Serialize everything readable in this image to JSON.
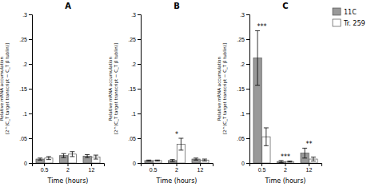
{
  "chart_data": [
    {
      "type": "bar",
      "title": "A",
      "x_label": "Time (hours)",
      "y_label": "Relative mRNA accumulation\n[2^(C_T target transcript − C_T β tublin)]",
      "categories": [
        "0.5",
        "2",
        "12"
      ],
      "series": [
        {
          "name": "11C",
          "color": "#999999",
          "values": [
            0.008,
            0.015,
            0.014
          ],
          "errors": [
            0.002,
            0.004,
            0.003
          ]
        },
        {
          "name": "Tr. 259",
          "color": "#ffffff",
          "values": [
            0.01,
            0.018,
            0.012
          ],
          "errors": [
            0.003,
            0.005,
            0.004
          ]
        }
      ],
      "ylim": [
        0,
        0.3
      ],
      "yticks": [
        0,
        {
          "value": 0.05,
          "label": ".05"
        },
        {
          "value": 0.1,
          "label": ".1"
        },
        {
          "value": 0.15,
          "label": ".15"
        },
        {
          "value": 0.2,
          "label": ".2"
        },
        {
          "value": 0.25,
          "label": ".25"
        },
        {
          "value": 0.3,
          "label": ".3"
        }
      ],
      "legend": "upper right"
    },
    {
      "type": "bar",
      "title": "B",
      "x_label": "Time (hours)",
      "y_label": "Relative mRNA accumulation\n[2^(C_T target transcript − C_T β tublin)]",
      "categories": [
        "0.5",
        "2",
        "12"
      ],
      "series": [
        {
          "name": "11C",
          "color": "#999999",
          "values": [
            0.005,
            0.005,
            0.008
          ],
          "errors": [
            0.001,
            0.002,
            0.002
          ]
        },
        {
          "name": "Tr. 259",
          "color": "#ffffff",
          "values": [
            0.005,
            0.038,
            0.006
          ],
          "errors": [
            0.001,
            0.012,
            0.002
          ]
        }
      ],
      "ylim": [
        0,
        0.3
      ],
      "yticks": [
        0,
        {
          "value": 0.05,
          "label": ".05"
        },
        {
          "value": 0.1,
          "label": ".1"
        },
        {
          "value": 0.15,
          "label": ".15"
        },
        {
          "value": 0.2,
          "label": ".2"
        },
        {
          "value": 0.25,
          "label": ".25"
        },
        {
          "value": 0.3,
          "label": ".3"
        }
      ],
      "annotations": [
        {
          "text": "*",
          "category": "2"
        }
      ]
    },
    {
      "type": "bar",
      "title": "C",
      "x_label": "Time (hours)",
      "y_label": "Relative mRNA accumulation\n[2^(C_T target transcript − C_T β tublin)]",
      "categories": [
        "0.5",
        "2",
        "12"
      ],
      "series": [
        {
          "name": "11C",
          "color": "#999999",
          "values": [
            0.212,
            0.003,
            0.02
          ],
          "errors": [
            0.055,
            0.002,
            0.01
          ]
        },
        {
          "name": "Tr. 259",
          "color": "#ffffff",
          "values": [
            0.053,
            0.003,
            0.008
          ],
          "errors": [
            0.018,
            0.001,
            0.004
          ]
        }
      ],
      "ylim": [
        0,
        0.3
      ],
      "yticks": [
        0,
        {
          "value": 0.05,
          "label": ".05"
        },
        {
          "value": 0.1,
          "label": ".1"
        },
        {
          "value": 0.15,
          "label": ".15"
        },
        {
          "value": 0.2,
          "label": ".2"
        },
        {
          "value": 0.25,
          "label": ".25"
        },
        {
          "value": 0.3,
          "label": ".3"
        }
      ],
      "annotations": [
        {
          "text": "***",
          "category": "0.5"
        },
        {
          "text": "***",
          "category": "2"
        },
        {
          "text": "**",
          "category": "12"
        }
      ]
    }
  ]
}
